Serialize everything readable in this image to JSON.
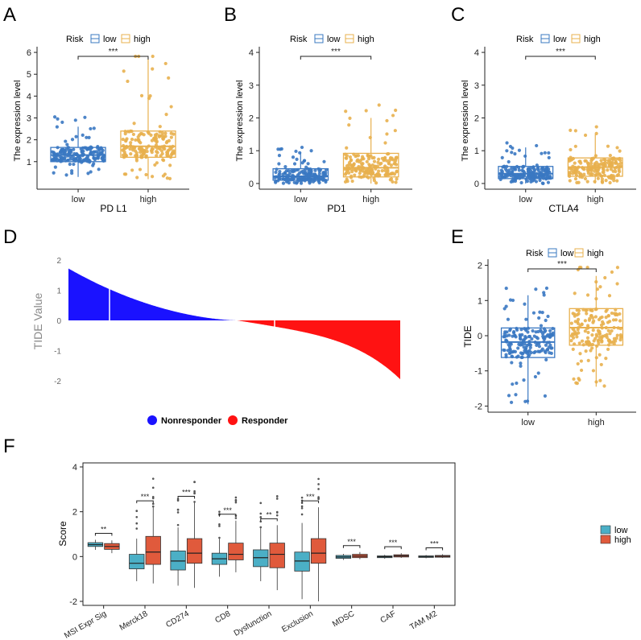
{
  "colors": {
    "low_box": "#3a78c2",
    "high_box": "#e8b04e",
    "low_fill": "#4bafc6",
    "high_fill": "#e05a3c",
    "nonresponder": "#1a12ff",
    "responder": "#ff1212"
  },
  "panels": {
    "A": {
      "letter": "A",
      "legend_title": "Risk",
      "legend_low": "low",
      "legend_high": "high",
      "ylabel": "The expression level",
      "xlabel": "PD L1",
      "sig": "***"
    },
    "B": {
      "letter": "B",
      "legend_title": "Risk",
      "legend_low": "low",
      "legend_high": "high",
      "ylabel": "The expression level",
      "xlabel": "PD1",
      "sig": "***"
    },
    "C": {
      "letter": "C",
      "legend_title": "Risk",
      "legend_low": "low",
      "legend_high": "high",
      "ylabel": "The expression level",
      "xlabel": "CTLA4",
      "sig": "***"
    },
    "D": {
      "letter": "D",
      "ylabel": "TIDE Value",
      "legend_nonresponder": "Nonresponder",
      "legend_responder": "Responder"
    },
    "E": {
      "letter": "E",
      "legend_title": "Risk",
      "legend_low": "low",
      "legend_high": "high",
      "ylabel": "TIDE",
      "sig": "***"
    },
    "F": {
      "letter": "F",
      "ylabel": "Score",
      "legend_low": "low",
      "legend_high": "high"
    }
  },
  "chart_data": [
    {
      "id": "A",
      "type": "box",
      "title": "",
      "xlabel": "PD L1",
      "ylabel": "The expression level",
      "categories": [
        "low",
        "high"
      ],
      "ylim": [
        0,
        6
      ],
      "yticks": [
        1,
        2,
        3,
        4,
        5,
        6
      ],
      "boxes": [
        {
          "name": "low",
          "q1": 1.0,
          "median": 1.3,
          "q3": 1.65,
          "wlo": 0.3,
          "whi": 2.6
        },
        {
          "name": "high",
          "q1": 1.2,
          "median": 1.7,
          "q3": 2.4,
          "wlo": 0.2,
          "whi": 5.7
        }
      ],
      "significance": "***"
    },
    {
      "id": "B",
      "type": "box",
      "title": "",
      "xlabel": "PD1",
      "ylabel": "The expression level",
      "categories": [
        "low",
        "high"
      ],
      "ylim": [
        0,
        4
      ],
      "yticks": [
        0,
        1,
        2,
        3,
        4
      ],
      "boxes": [
        {
          "name": "low",
          "q1": 0.1,
          "median": 0.22,
          "q3": 0.45,
          "wlo": 0.0,
          "whi": 0.95
        },
        {
          "name": "high",
          "q1": 0.2,
          "median": 0.48,
          "q3": 0.92,
          "wlo": 0.0,
          "whi": 2.0
        }
      ],
      "significance": "***"
    },
    {
      "id": "C",
      "type": "box",
      "title": "",
      "xlabel": "CTLA4",
      "ylabel": "The expression level",
      "categories": [
        "low",
        "high"
      ],
      "ylim": [
        0,
        4
      ],
      "yticks": [
        0,
        1,
        2,
        3,
        4
      ],
      "boxes": [
        {
          "name": "low",
          "q1": 0.15,
          "median": 0.3,
          "q3": 0.52,
          "wlo": 0.0,
          "whi": 1.1
        },
        {
          "name": "high",
          "q1": 0.22,
          "median": 0.5,
          "q3": 0.78,
          "wlo": 0.0,
          "whi": 1.5
        }
      ],
      "significance": "***"
    },
    {
      "id": "D",
      "type": "bar",
      "title": "",
      "xlabel": "",
      "ylabel": "TIDE Value",
      "ylim": [
        -2,
        2
      ],
      "yticks": [
        -2,
        -1,
        0,
        1,
        2
      ],
      "series": [
        {
          "name": "Nonresponder",
          "count": 200,
          "start": 1.72,
          "end": 0.0
        },
        {
          "name": "Responder",
          "count": 193,
          "start": 0.0,
          "end": -1.95
        }
      ]
    },
    {
      "id": "E",
      "type": "box",
      "title": "",
      "xlabel": "",
      "ylabel": "TIDE",
      "categories": [
        "low",
        "high"
      ],
      "ylim": [
        -2,
        2
      ],
      "yticks": [
        -2,
        -1,
        0,
        1,
        2
      ],
      "boxes": [
        {
          "name": "low",
          "q1": -0.62,
          "median": -0.18,
          "q3": 0.22,
          "wlo": -1.95,
          "whi": 1.15
        },
        {
          "name": "high",
          "q1": -0.27,
          "median": 0.23,
          "q3": 0.77,
          "wlo": -1.45,
          "whi": 1.7
        }
      ],
      "significance": "***"
    },
    {
      "id": "F",
      "type": "box",
      "title": "",
      "xlabel": "",
      "ylabel": "Score",
      "categories": [
        "MSI Expr Sig",
        "Merck18",
        "CD274",
        "CD8",
        "Dysfunction",
        "Exclusion",
        "MDSC",
        "CAF",
        "TAM M2"
      ],
      "ylim": [
        -2,
        4
      ],
      "yticks": [
        -2,
        0,
        2,
        4
      ],
      "series": [
        {
          "name": "low",
          "boxes": [
            {
              "q1": 0.45,
              "median": 0.53,
              "q3": 0.62,
              "wlo": 0.3,
              "whi": 0.75
            },
            {
              "q1": -0.55,
              "median": -0.3,
              "q3": 0.1,
              "wlo": -1.1,
              "whi": 0.8
            },
            {
              "q1": -0.6,
              "median": -0.2,
              "q3": 0.25,
              "wlo": -1.3,
              "whi": 1.3
            },
            {
              "q1": -0.35,
              "median": -0.1,
              "q3": 0.15,
              "wlo": -0.9,
              "whi": 0.8
            },
            {
              "q1": -0.45,
              "median": -0.05,
              "q3": 0.3,
              "wlo": -1.1,
              "whi": 1.3
            },
            {
              "q1": -0.65,
              "median": -0.2,
              "q3": 0.2,
              "wlo": -1.9,
              "whi": 1.5
            },
            {
              "q1": -0.08,
              "median": -0.02,
              "q3": 0.05,
              "wlo": -0.15,
              "whi": 0.12
            },
            {
              "q1": -0.05,
              "median": -0.01,
              "q3": 0.03,
              "wlo": -0.1,
              "whi": 0.08
            },
            {
              "q1": -0.04,
              "median": 0.0,
              "q3": 0.03,
              "wlo": -0.08,
              "whi": 0.07
            }
          ]
        },
        {
          "name": "high",
          "boxes": [
            {
              "q1": 0.32,
              "median": 0.45,
              "q3": 0.58,
              "wlo": 0.15,
              "whi": 0.72
            },
            {
              "q1": -0.35,
              "median": 0.2,
              "q3": 0.9,
              "wlo": -1.2,
              "whi": 2.2
            },
            {
              "q1": -0.3,
              "median": 0.15,
              "q3": 0.8,
              "wlo": -1.4,
              "whi": 2.4
            },
            {
              "q1": -0.15,
              "median": 0.1,
              "q3": 0.6,
              "wlo": -0.7,
              "whi": 1.6
            },
            {
              "q1": -0.5,
              "median": 0.1,
              "q3": 0.6,
              "wlo": -1.5,
              "whi": 1.4
            },
            {
              "q1": -0.3,
              "median": 0.15,
              "q3": 0.8,
              "wlo": -2.0,
              "whi": 2.2
            },
            {
              "q1": -0.05,
              "median": 0.02,
              "q3": 0.1,
              "wlo": -0.12,
              "whi": 0.2
            },
            {
              "q1": -0.02,
              "median": 0.03,
              "q3": 0.08,
              "wlo": -0.06,
              "whi": 0.15
            },
            {
              "q1": -0.03,
              "median": 0.01,
              "q3": 0.05,
              "wlo": -0.06,
              "whi": 0.1
            }
          ]
        }
      ],
      "significance": [
        "**",
        "***",
        "***",
        "***",
        "**",
        "***",
        "***",
        "***",
        "***"
      ]
    }
  ]
}
